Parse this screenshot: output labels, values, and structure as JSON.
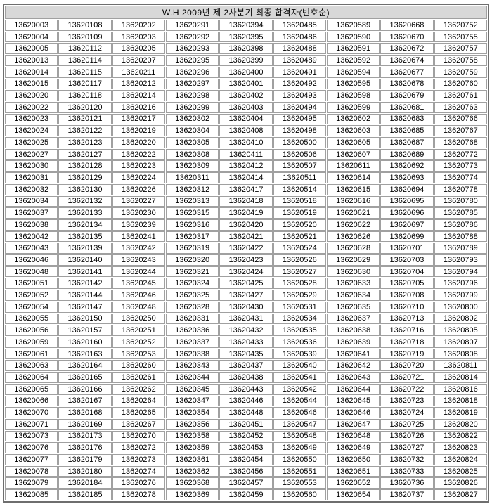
{
  "title": "W.H 2009년 제 2사분기 최종 합격자(번호순)",
  "colors": {
    "title_background": "#d8d8d8",
    "cell_background": "#ffffff",
    "grid_border": "#a0a0a0",
    "outer_border": "#6e6e6e",
    "text": "#000000"
  },
  "table": {
    "columns": 9,
    "rows": [
      [
        "13620003",
        "13620108",
        "13620202",
        "13620291",
        "13620394",
        "13620485",
        "13620589",
        "13620668",
        "13620752"
      ],
      [
        "13620004",
        "13620109",
        "13620203",
        "13620292",
        "13620395",
        "13620486",
        "13620590",
        "13620670",
        "13620755"
      ],
      [
        "13620005",
        "13620112",
        "13620205",
        "13620293",
        "13620398",
        "13620488",
        "13620591",
        "13620672",
        "13620757"
      ],
      [
        "13620013",
        "13620114",
        "13620207",
        "13620295",
        "13620399",
        "13620489",
        "13620592",
        "13620674",
        "13620758"
      ],
      [
        "13620014",
        "13620115",
        "13620211",
        "13620296",
        "13620400",
        "13620491",
        "13620594",
        "13620677",
        "13620759"
      ],
      [
        "13620015",
        "13620117",
        "13620212",
        "13620297",
        "13620401",
        "13620492",
        "13620595",
        "13620678",
        "13620760"
      ],
      [
        "13620020",
        "13620118",
        "13620214",
        "13620298",
        "13620402",
        "13620493",
        "13620598",
        "13620679",
        "13620761"
      ],
      [
        "13620022",
        "13620120",
        "13620216",
        "13620299",
        "13620403",
        "13620494",
        "13620599",
        "13620681",
        "13620763"
      ],
      [
        "13620023",
        "13620121",
        "13620217",
        "13620302",
        "13620404",
        "13620495",
        "13620602",
        "13620683",
        "13620766"
      ],
      [
        "13620024",
        "13620122",
        "13620219",
        "13620304",
        "13620408",
        "13620498",
        "13620603",
        "13620685",
        "13620767"
      ],
      [
        "13620025",
        "13620123",
        "13620220",
        "13620305",
        "13620410",
        "13620500",
        "13620605",
        "13620687",
        "13620768"
      ],
      [
        "13620027",
        "13620127",
        "13620222",
        "13620308",
        "13620411",
        "13620506",
        "13620607",
        "13620689",
        "13620772"
      ],
      [
        "13620030",
        "13620128",
        "13620223",
        "13620309",
        "13620412",
        "13620507",
        "13620611",
        "13620692",
        "13620773"
      ],
      [
        "13620031",
        "13620129",
        "13620224",
        "13620311",
        "13620414",
        "13620511",
        "13620614",
        "13620693",
        "13620774"
      ],
      [
        "13620032",
        "13620130",
        "13620226",
        "13620312",
        "13620417",
        "13620514",
        "13620615",
        "13620694",
        "13620778"
      ],
      [
        "13620034",
        "13620132",
        "13620227",
        "13620313",
        "13620418",
        "13620518",
        "13620616",
        "13620695",
        "13620780"
      ],
      [
        "13620037",
        "13620133",
        "13620230",
        "13620315",
        "13620419",
        "13620519",
        "13620621",
        "13620696",
        "13620785"
      ],
      [
        "13620038",
        "13620134",
        "13620239",
        "13620316",
        "13620420",
        "13620520",
        "13620622",
        "13620697",
        "13620786"
      ],
      [
        "13620042",
        "13620135",
        "13620241",
        "13620317",
        "13620421",
        "13620521",
        "13620626",
        "13620699",
        "13620788"
      ],
      [
        "13620043",
        "13620139",
        "13620242",
        "13620319",
        "13620422",
        "13620524",
        "13620628",
        "13620701",
        "13620789"
      ],
      [
        "13620046",
        "13620140",
        "13620243",
        "13620320",
        "13620423",
        "13620526",
        "13620629",
        "13620703",
        "13620793"
      ],
      [
        "13620048",
        "13620141",
        "13620244",
        "13620321",
        "13620424",
        "13620527",
        "13620630",
        "13620704",
        "13620794"
      ],
      [
        "13620051",
        "13620142",
        "13620245",
        "13620324",
        "13620425",
        "13620528",
        "13620633",
        "13620705",
        "13620796"
      ],
      [
        "13620052",
        "13620144",
        "13620246",
        "13620325",
        "13620427",
        "13620529",
        "13620634",
        "13620708",
        "13620799"
      ],
      [
        "13620054",
        "13620147",
        "13620248",
        "13620328",
        "13620430",
        "13620531",
        "13620635",
        "13620710",
        "13620800"
      ],
      [
        "13620055",
        "13620150",
        "13620250",
        "13620331",
        "13620431",
        "13620534",
        "13620637",
        "13620713",
        "13620802"
      ],
      [
        "13620056",
        "13620157",
        "13620251",
        "13620336",
        "13620432",
        "13620535",
        "13620638",
        "13620716",
        "13620805"
      ],
      [
        "13620059",
        "13620160",
        "13620252",
        "13620337",
        "13620433",
        "13620536",
        "13620639",
        "13620718",
        "13620807"
      ],
      [
        "13620061",
        "13620163",
        "13620253",
        "13620338",
        "13620435",
        "13620539",
        "13620641",
        "13620719",
        "13620808"
      ],
      [
        "13620063",
        "13620164",
        "13620260",
        "13620343",
        "13620437",
        "13620540",
        "13620642",
        "13620720",
        "13620811"
      ],
      [
        "13620064",
        "13620165",
        "13620261",
        "13620344",
        "13620438",
        "13620541",
        "13620643",
        "13620721",
        "13620814"
      ],
      [
        "13620065",
        "13620166",
        "13620262",
        "13620345",
        "13620443",
        "13620542",
        "13620644",
        "13620722",
        "13620816"
      ],
      [
        "13620066",
        "13620167",
        "13620264",
        "13620347",
        "13620446",
        "13620544",
        "13620645",
        "13620723",
        "13620818"
      ],
      [
        "13620070",
        "13620168",
        "13620265",
        "13620354",
        "13620448",
        "13620546",
        "13620646",
        "13620724",
        "13620819"
      ],
      [
        "13620071",
        "13620169",
        "13620267",
        "13620356",
        "13620451",
        "13620547",
        "13620647",
        "13620725",
        "13620820"
      ],
      [
        "13620073",
        "13620173",
        "13620270",
        "13620358",
        "13620452",
        "13620548",
        "13620648",
        "13620726",
        "13620822"
      ],
      [
        "13620076",
        "13620176",
        "13620272",
        "13620359",
        "13620453",
        "13620549",
        "13620649",
        "13620727",
        "13620823"
      ],
      [
        "13620077",
        "13620179",
        "13620273",
        "13620361",
        "13620454",
        "13620550",
        "13620650",
        "13620732",
        "13620824"
      ],
      [
        "13620078",
        "13620180",
        "13620274",
        "13620362",
        "13620456",
        "13620551",
        "13620651",
        "13620733",
        "13620825"
      ],
      [
        "13620079",
        "13620184",
        "13620276",
        "13620368",
        "13620457",
        "13620553",
        "13620652",
        "13620736",
        "13620826"
      ],
      [
        "13620085",
        "13620185",
        "13620278",
        "13620369",
        "13620459",
        "13620560",
        "13620654",
        "13620737",
        "13620827"
      ]
    ]
  }
}
